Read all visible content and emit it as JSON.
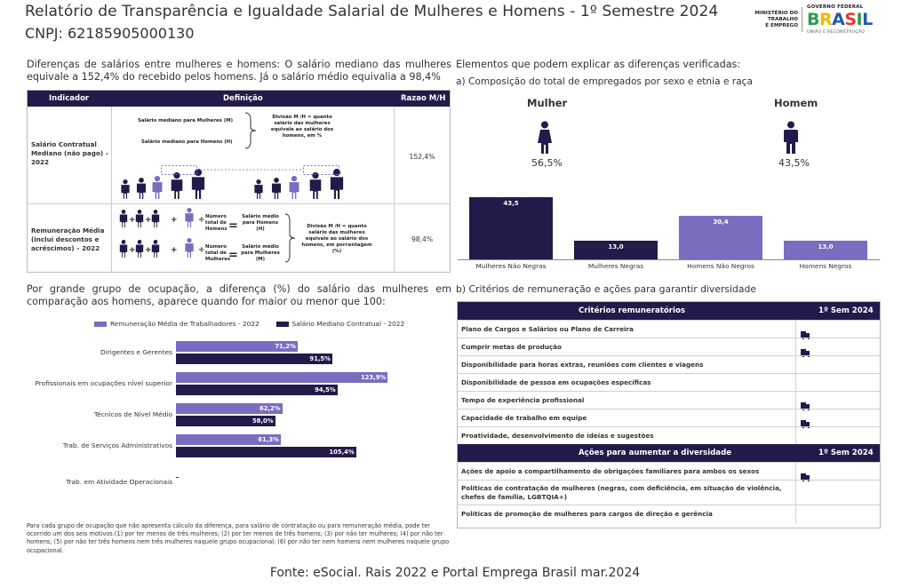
{
  "header": {
    "title": "Relatório de Transparência e Igualdade Salarial de Mulheres e Homens - 1º Semestre 2024",
    "cnpj": "CNPJ: 62185905000130",
    "ministry": [
      "MINISTÉRIO DO",
      "TRABALHO",
      "E EMPREGO"
    ],
    "gov_federal": "GOVERNO FEDERAL",
    "brasil": "BRASIL",
    "uniao": "UNIÃO E RECONSTRUÇÃO"
  },
  "left": {
    "intro": "Diferenças de salários entre mulheres e homens: O salário mediano das mulheres equivale a 152,4% do recebido pelos homens. Já o salário médio equivalia a 98,4%",
    "table": {
      "headers": [
        "Indicador",
        "Definição",
        "Razao M/H"
      ],
      "rows": [
        {
          "indicator": "Salário Contratual Mediano (não pago) – 2022",
          "def_women": "Salário mediano para Mulheres (M)",
          "def_men": "Salário mediano para Homens (H)",
          "def_division": "Divisão M /H = quanto salário das mulheres equivale ao salário dos homens, em %",
          "value": "152,4%"
        },
        {
          "indicator": "Remuneração Média (inclui descontos e acréscimos) – 2022",
          "def_total_men": "Número total de Homens",
          "def_total_women": "Número total de Mulheres",
          "def_avg_men": "Salário médio para Homens (H)",
          "def_avg_women": "Salário médio para Mulheres (M)",
          "def_division": "Divisão M /H = quanto salário das mulheres equivale ao salário dos homens, em porcentagem (%)",
          "value": "98,4%"
        }
      ]
    },
    "occupation_intro": "Por grande grupo de ocupação, a diferença (%) do salário das mulheres em comparação aos homens, aparece quando for maior ou menor que 100:",
    "footnote": "Para cada grupo de ocupação que não apresenta cálculo da diferença, para salário de contratação ou para remuneração média, pode ter ocorrido um dos seis motivos:(1) por ter menos de três mulheres; (2) por ter menos de três homens; (3) por não ter mulheres; (4) por não ter homens; (5) por não ter três homens nem três mulheres naquele grupo ocupacional; (6) por não ter nem homens nem mulheres naquele grupo ocupacional."
  },
  "right": {
    "elements_title": "Elementos que podem explicar as diferenças verificadas:",
    "sub_a": "a) Composição do total de empregados por sexo e etnia e raça",
    "woman_label": "Mulher",
    "woman_pct": "56,5%",
    "man_label": "Homem",
    "man_pct": "43,5%",
    "sub_b": "b) Critérios de remuneração e ações para garantir diversidade",
    "criteria_header": "Critérios remuneratórios",
    "semester_header": "1º Sem 2024",
    "criteria": [
      {
        "label": "Plano de Cargos e Salários ou Plano de Carreira",
        "checked": true
      },
      {
        "label": "Cumprir metas de produção",
        "checked": true
      },
      {
        "label": "Disponibilidade para horas extras, reuniões com clientes e viagens",
        "checked": false
      },
      {
        "label": "Disponibilidade de pessoa em ocupações específicas",
        "checked": false
      },
      {
        "label": "Tempo de experiência profissional",
        "checked": true
      },
      {
        "label": "Capacidade de trabalho em equipe",
        "checked": true
      },
      {
        "label": "Proatividade, desenvolvimento de ideias e sugestões",
        "checked": false
      }
    ],
    "actions_header": "Ações para aumentar a diversidade",
    "actions_semester_header": "1º Sem 2024",
    "actions": [
      {
        "label": "Ações de apoio a compartilhamento de obrigações familiares para ambos os sexos",
        "checked": true
      },
      {
        "label": "Políticas de contratação de mulheres (negras, com deficiência, em situação de violência, chefes de família, LGBTQIA+)",
        "checked": false
      },
      {
        "label": "Políticas de promoção de mulheres para cargos de direção e gerência",
        "checked": false
      }
    ]
  },
  "source": "Fonte: eSocial. Rais 2022 e Portal Emprega Brasil mar.2024",
  "colors": {
    "navy": "#241a4a",
    "lavender": "#7b6cc0"
  },
  "chart_data": [
    {
      "type": "bar",
      "categories": [
        "Mulheres Não Negras",
        "Mulheres Negras",
        "Homens Não Negros",
        "Homens Negros"
      ],
      "values": [
        43.5,
        13.0,
        30.4,
        13.0
      ],
      "value_labels": [
        "43,5",
        "13,0",
        "30,4",
        "13,0"
      ],
      "colors": [
        "#241a4a",
        "#241a4a",
        "#7b6cc0",
        "#7b6cc0"
      ],
      "ylim": [
        0,
        50
      ]
    },
    {
      "type": "bar",
      "orientation": "horizontal",
      "categories": [
        "Dirigentes e Gerentes",
        "Profissionais em ocupações nível superior",
        "Técnicos de Nível Médio",
        "Trab. de Serviços Administrativos",
        "Trab. em Atividade Operacionais"
      ],
      "series": [
        {
          "name": "Remuneração Média de Trabalhadores - 2022",
          "values": [
            71.2,
            123.9,
            62.2,
            61.3,
            null
          ],
          "labels": [
            "71,2%",
            "123,9%",
            "62,2%",
            "61,3%",
            ""
          ],
          "color": "#7b6cc0"
        },
        {
          "name": "Salário Mediano Contratual - 2022",
          "values": [
            91.5,
            94.5,
            58.0,
            105.4,
            null
          ],
          "labels": [
            "91,5%",
            "94,5%",
            "58,0%",
            "105,4%",
            ""
          ],
          "color": "#241a4a"
        }
      ],
      "xlim": [
        0,
        130
      ]
    }
  ]
}
